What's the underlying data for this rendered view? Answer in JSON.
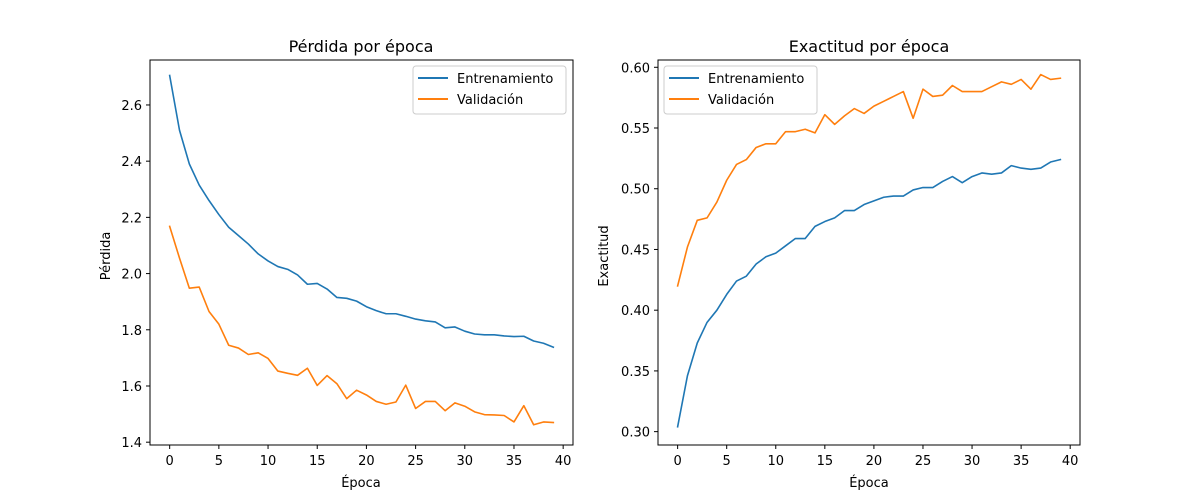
{
  "chart_data": [
    {
      "type": "line",
      "title": "Pérdida por época",
      "xlabel": "Época",
      "ylabel": "Pérdida",
      "xlim": [
        -2,
        41
      ],
      "ylim": [
        1.39,
        2.76
      ],
      "xticks": [
        0,
        5,
        10,
        15,
        20,
        25,
        30,
        35,
        40
      ],
      "yticks": [
        1.4,
        1.6,
        1.8,
        2.0,
        2.2,
        2.4,
        2.6
      ],
      "ytick_decimals": 1,
      "legend_position": "upper right",
      "grid": false,
      "series": [
        {
          "name": "Entrenamiento",
          "color": "#1f77b4",
          "x": [
            0,
            1,
            2,
            3,
            4,
            5,
            6,
            7,
            8,
            9,
            10,
            11,
            12,
            13,
            14,
            15,
            16,
            17,
            18,
            19,
            20,
            21,
            22,
            23,
            24,
            25,
            26,
            27,
            28,
            29,
            30,
            31,
            32,
            33,
            34,
            35,
            36,
            37,
            38,
            39
          ],
          "values": [
            2.705,
            2.51,
            2.39,
            2.315,
            2.26,
            2.21,
            2.165,
            2.135,
            2.105,
            2.07,
            2.045,
            2.025,
            2.015,
            1.995,
            1.962,
            1.965,
            1.945,
            1.915,
            1.912,
            1.902,
            1.882,
            1.868,
            1.857,
            1.857,
            1.848,
            1.838,
            1.832,
            1.828,
            1.807,
            1.81,
            1.795,
            1.785,
            1.782,
            1.782,
            1.778,
            1.776,
            1.777,
            1.76,
            1.752,
            1.738
          ]
        },
        {
          "name": "Validación",
          "color": "#ff7f0e",
          "x": [
            0,
            1,
            2,
            3,
            4,
            5,
            6,
            7,
            8,
            9,
            10,
            11,
            12,
            13,
            14,
            15,
            16,
            17,
            18,
            19,
            20,
            21,
            22,
            23,
            24,
            25,
            26,
            27,
            28,
            29,
            30,
            31,
            32,
            33,
            34,
            35,
            36,
            37,
            38,
            39
          ],
          "values": [
            2.168,
            2.055,
            1.948,
            1.952,
            1.865,
            1.82,
            1.745,
            1.735,
            1.712,
            1.718,
            1.698,
            1.653,
            1.645,
            1.638,
            1.663,
            1.602,
            1.637,
            1.608,
            1.555,
            1.585,
            1.568,
            1.545,
            1.535,
            1.543,
            1.603,
            1.52,
            1.545,
            1.545,
            1.512,
            1.54,
            1.528,
            1.508,
            1.498,
            1.497,
            1.495,
            1.472,
            1.53,
            1.462,
            1.472,
            1.47
          ]
        }
      ]
    },
    {
      "type": "line",
      "title": "Exactitud por época",
      "xlabel": "Época",
      "ylabel": "Exactitud",
      "xlim": [
        -2,
        41
      ],
      "ylim": [
        0.289,
        0.606
      ],
      "xticks": [
        0,
        5,
        10,
        15,
        20,
        25,
        30,
        35,
        40
      ],
      "yticks": [
        0.3,
        0.35,
        0.4,
        0.45,
        0.5,
        0.55,
        0.6
      ],
      "ytick_decimals": 2,
      "legend_position": "upper left",
      "grid": false,
      "series": [
        {
          "name": "Entrenamiento",
          "color": "#1f77b4",
          "x": [
            0,
            1,
            2,
            3,
            4,
            5,
            6,
            7,
            8,
            9,
            10,
            11,
            12,
            13,
            14,
            15,
            16,
            17,
            18,
            19,
            20,
            21,
            22,
            23,
            24,
            25,
            26,
            27,
            28,
            29,
            30,
            31,
            32,
            33,
            34,
            35,
            36,
            37,
            38,
            39
          ],
          "values": [
            0.304,
            0.346,
            0.373,
            0.39,
            0.4,
            0.413,
            0.424,
            0.428,
            0.438,
            0.444,
            0.447,
            0.453,
            0.459,
            0.459,
            0.469,
            0.473,
            0.476,
            0.482,
            0.482,
            0.487,
            0.49,
            0.493,
            0.494,
            0.494,
            0.499,
            0.501,
            0.501,
            0.506,
            0.51,
            0.505,
            0.51,
            0.513,
            0.512,
            0.513,
            0.519,
            0.517,
            0.516,
            0.517,
            0.522,
            0.524
          ]
        },
        {
          "name": "Validación",
          "color": "#ff7f0e",
          "x": [
            0,
            1,
            2,
            3,
            4,
            5,
            6,
            7,
            8,
            9,
            10,
            11,
            12,
            13,
            14,
            15,
            16,
            17,
            18,
            19,
            20,
            21,
            22,
            23,
            24,
            25,
            26,
            27,
            28,
            29,
            30,
            31,
            32,
            33,
            34,
            35,
            36,
            37,
            38,
            39
          ],
          "values": [
            0.42,
            0.452,
            0.474,
            0.476,
            0.489,
            0.507,
            0.52,
            0.524,
            0.534,
            0.537,
            0.537,
            0.547,
            0.547,
            0.549,
            0.546,
            0.561,
            0.553,
            0.56,
            0.566,
            0.562,
            0.568,
            0.572,
            0.576,
            0.58,
            0.558,
            0.582,
            0.576,
            0.577,
            0.585,
            0.58,
            0.58,
            0.58,
            0.584,
            0.588,
            0.586,
            0.59,
            0.582,
            0.594,
            0.59,
            0.591
          ]
        }
      ]
    }
  ]
}
